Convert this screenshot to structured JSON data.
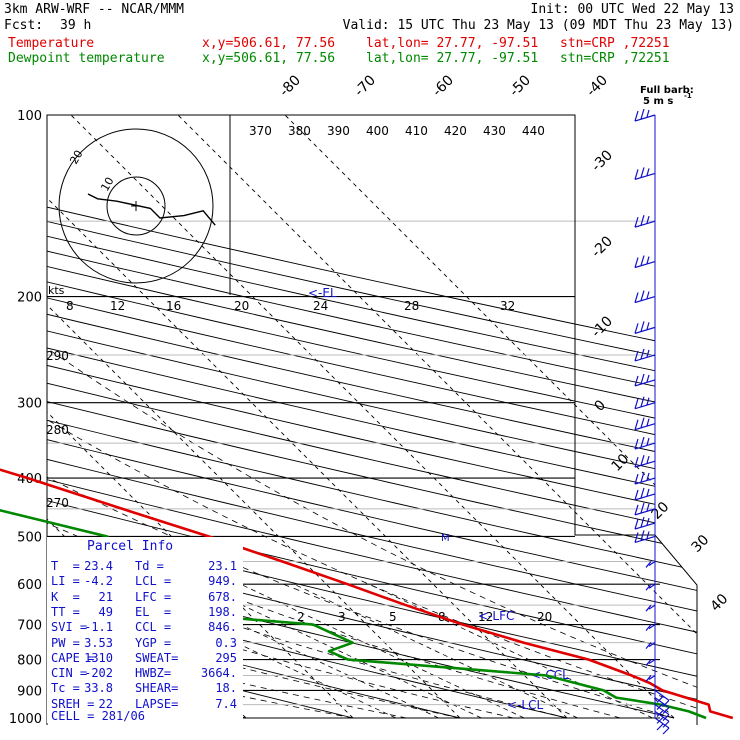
{
  "header": {
    "title": "3km ARW-WRF -- NCAR/MMM",
    "fcst_label": "Fcst:",
    "fcst_value": "39 h",
    "init": "Init: 00 UTC Wed 22 May 13",
    "valid": "Valid: 15 UTC Thu 23 May 13 (09 MDT Thu 23 May 13)",
    "temp_line": {
      "name": "Temperature",
      "xy": "x,y=506.61, 77.56",
      "latlon": "lat,lon= 27.77, -97.51",
      "stn": "stn=CRP ,72251"
    },
    "dew_line": {
      "name": "Dewpoint temperature",
      "xy": "x,y=506.61, 77.56",
      "latlon": "lat,lon= 27.77, -97.51",
      "stn": "stn=CRP ,72251"
    }
  },
  "barb_legend": {
    "line1": "Full barb:",
    "line2": "5 m s",
    "exp": "-1"
  },
  "hodograph": {
    "units": "kts",
    "ring_labels": [
      "8",
      "12",
      "16",
      "20",
      "24",
      "28",
      "32"
    ],
    "inner_labels": [
      "20",
      "10"
    ]
  },
  "theta_labels": [
    "370",
    "380",
    "390",
    "400",
    "410",
    "420",
    "430",
    "440"
  ],
  "theta_e_labels": [
    "290",
    "280",
    "270"
  ],
  "mixing_ratio_labels": [
    "2",
    "3",
    "5",
    "8",
    "12",
    "20"
  ],
  "level_markers": {
    "el": "<-EL",
    "lfc": "<-LFC",
    "ccl": "<-CCL",
    "lcl": "<-LCL",
    "m": "M"
  },
  "parcel_info": {
    "title": "Parcel Info",
    "rows": [
      [
        "T  =",
        "23.4",
        "Td =",
        "23.1"
      ],
      [
        "LI =",
        "-4.2",
        "LCL =",
        "949."
      ],
      [
        "K  =",
        "21",
        "LFC =",
        "678."
      ],
      [
        "TT =",
        "49",
        "EL  =",
        "198."
      ],
      [
        "SVI =",
        "-1.1",
        "CCL =",
        "846."
      ],
      [
        "PW =",
        "3.53",
        "YGP =",
        "0.3"
      ],
      [
        "CAPE =",
        "1310",
        "SWEAT=",
        "295"
      ],
      [
        "CIN =",
        "-202",
        "HWBZ=",
        "3664."
      ],
      [
        "Tc =",
        "33.8",
        "SHEAR=",
        "18."
      ],
      [
        "SREH =",
        "22",
        "LAPSE=",
        "7.4"
      ]
    ],
    "cell": "CELL = 281/06"
  },
  "chart_data": {
    "type": "line",
    "title": "Skew-T log-P",
    "pressure_levels": [
      100,
      200,
      300,
      400,
      500,
      600,
      700,
      800,
      900,
      1000
    ],
    "pressure_labels": [
      "100",
      "200",
      "300",
      "400",
      "500",
      "600",
      "700",
      "800",
      "900",
      "1000"
    ],
    "isotherms": [
      -80,
      -70,
      -60,
      -50,
      -40,
      -30,
      -20,
      -10,
      0,
      10,
      20,
      30,
      40
    ],
    "isotherm_labels": [
      "-80",
      "-70",
      "-60",
      "-50",
      "-40",
      "-30",
      "-20",
      "-10",
      "0",
      "10",
      "20",
      "30",
      "40"
    ],
    "series": [
      {
        "name": "Temperature",
        "color": "#e00000",
        "p": [
          1000,
          975,
          950,
          900,
          875,
          850,
          800,
          750,
          700,
          650,
          600,
          550,
          500,
          450,
          400,
          350,
          300,
          250,
          200,
          175,
          150,
          125,
          100
        ],
        "temp": [
          25.5,
          24.0,
          24.5,
          21.5,
          21.0,
          20.0,
          17.5,
          13.0,
          9.0,
          5.5,
          2.0,
          -2.0,
          -6.5,
          -12.0,
          -18.0,
          -25.5,
          -34.0,
          -43.5,
          -55.0,
          -61.5,
          -68.5,
          -75.0,
          -80.0
        ]
      },
      {
        "name": "Dewpoint temperature",
        "color": "#008800",
        "p": [
          1000,
          975,
          950,
          925,
          900,
          850,
          800,
          775,
          750,
          700,
          650,
          600,
          550,
          500,
          450,
          400,
          350,
          300,
          250,
          200,
          175,
          150,
          125,
          100
        ],
        "temp": [
          23.0,
          22.0,
          20.0,
          16.5,
          16.0,
          12.0,
          -5.0,
          -6.0,
          -3.0,
          -5.0,
          -25.0,
          -25.0,
          -18.0,
          -16.0,
          -24.0,
          -35.0,
          -32.0,
          -35.0,
          -40.0,
          -60.0,
          -64.0,
          -66.0,
          -70.0,
          -80.0
        ]
      }
    ],
    "hodograph_path_uv_kts": [
      [
        5,
        -20
      ],
      [
        3,
        -16
      ],
      [
        2,
        -8
      ],
      [
        -1,
        6
      ],
      [
        -5,
        10
      ],
      [
        -4,
        20
      ],
      [
        -2,
        28
      ],
      [
        -8,
        33
      ]
    ],
    "wind_barb_pressures": [
      100,
      125,
      150,
      175,
      200,
      225,
      250,
      275,
      300,
      325,
      350,
      375,
      400,
      425,
      450,
      475,
      500,
      550,
      600,
      650,
      700,
      750,
      800,
      850,
      900,
      925,
      950,
      975,
      1000
    ],
    "xlabel": "",
    "ylabel": ""
  }
}
